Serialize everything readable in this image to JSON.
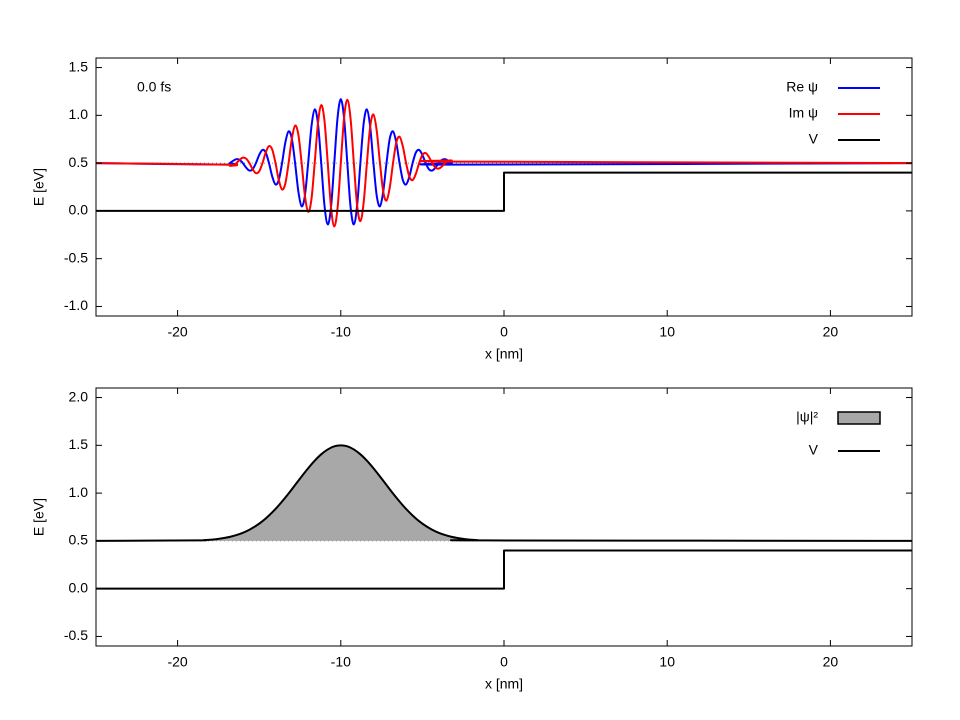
{
  "chart_data": [
    {
      "type": "line",
      "xlabel": "x [nm]",
      "ylabel": "E [eV]",
      "annotation": "0.0 fs",
      "xlim": [
        -25,
        25
      ],
      "xticks": [
        -20,
        -10,
        0,
        10,
        20
      ],
      "ylim": [
        -1.1,
        1.6
      ],
      "yticks": [
        {
          "value": -1,
          "label": "-1.0"
        },
        -0.5,
        {
          "value": 0,
          "label": "0.0"
        },
        0.5,
        {
          "value": 1,
          "label": "1.0"
        },
        1.5
      ],
      "energy": 0.5,
      "legend": "top-right",
      "series": [
        {
          "name": "Re ψ",
          "color": "#0000ff",
          "smooth": true,
          "x": [
            -25,
            -17,
            -16.8,
            -16.6,
            -16.4,
            -16.2,
            -16,
            -15.8,
            -15.6,
            -15.4,
            -15.2,
            -15,
            -14.8,
            -14.6,
            -14.4,
            -14.2,
            -14,
            -13.8,
            -13.6,
            -13.4,
            -13.2,
            -13,
            -12.8,
            -12.6,
            -12.4,
            -12.2,
            -12,
            -11.8,
            -11.6,
            -11.4,
            -11.2,
            -11,
            -10.8,
            -10.6,
            -10.4,
            -10.2,
            -10,
            -9.8,
            -9.6,
            -9.4,
            -9.2,
            -9,
            -8.8,
            -8.6,
            -8.4,
            -8.2,
            -8,
            -7.8,
            -7.6,
            -7.4,
            -7.2,
            -7,
            -6.8,
            -6.6,
            -6.4,
            -6.2,
            -6,
            -5.8,
            -5.6,
            -5.4,
            -5.2,
            -5,
            -4.8,
            -4.6,
            -4.4,
            -4.2,
            -4,
            -3.8,
            -3.6,
            -3.4,
            -3.2,
            -3,
            25
          ],
          "values": [
            0.5,
            0.484,
            0.5,
            0.524,
            0.541,
            0.534,
            0.5,
            0.453,
            0.422,
            0.436,
            0.5,
            0.586,
            0.638,
            0.611,
            0.5,
            0.359,
            0.276,
            0.324,
            0.5,
            0.715,
            0.832,
            0.756,
            0.5,
            0.202,
            0.048,
            0.16,
            0.5,
            0.88,
            1.062,
            0.914,
            0.5,
            0.057,
            -0.141,
            0.038,
            0.5,
            0.972,
            1.17,
            0.972,
            0.5,
            0.038,
            -0.141,
            0.057,
            0.5,
            0.914,
            1.062,
            0.88,
            0.5,
            0.16,
            0.048,
            0.202,
            0.5,
            0.756,
            0.832,
            0.715,
            0.5,
            0.324,
            0.276,
            0.359,
            0.5,
            0.611,
            0.638,
            0.586,
            0.5,
            0.436,
            0.422,
            0.453,
            0.5,
            0.534,
            0.541,
            0.524,
            0.5,
            0.484,
            0.5
          ]
        },
        {
          "name": "Im ψ",
          "color": "#ff0000",
          "smooth": true,
          "x": [
            -25,
            -17,
            -16.8,
            -16.6,
            -16.4,
            -16.2,
            -16,
            -15.8,
            -15.6,
            -15.4,
            -15.2,
            -15,
            -14.8,
            -14.6,
            -14.4,
            -14.2,
            -14,
            -13.8,
            -13.6,
            -13.4,
            -13.2,
            -13,
            -12.8,
            -12.6,
            -12.4,
            -12.2,
            -12,
            -11.8,
            -11.6,
            -11.4,
            -11.2,
            -11,
            -10.8,
            -10.6,
            -10.4,
            -10.2,
            -10,
            -9.8,
            -9.6,
            -9.4,
            -9.2,
            -9,
            -8.8,
            -8.6,
            -8.4,
            -8.2,
            -8,
            -7.8,
            -7.6,
            -7.4,
            -7.2,
            -7,
            -6.8,
            -6.6,
            -6.4,
            -6.2,
            -6,
            -5.8,
            -5.6,
            -5.4,
            -5.2,
            -5,
            -4.8,
            -4.6,
            -4.4,
            -4.2,
            -4,
            -3.8,
            -3.6,
            -3.4,
            -3.2,
            -3,
            25
          ],
          "values": [
            0.5,
            0.484,
            0.472,
            0.476,
            0.5,
            0.534,
            0.557,
            0.547,
            0.5,
            0.436,
            0.395,
            0.414,
            0.5,
            0.611,
            0.678,
            0.641,
            0.5,
            0.324,
            0.224,
            0.285,
            0.5,
            0.756,
            0.892,
            0.798,
            0.5,
            0.16,
            -0.009,
            0.12,
            0.5,
            0.914,
            1.107,
            0.943,
            0.5,
            0.038,
            -0.163,
            0.028,
            0.5,
            0.972,
            1.163,
            0.962,
            0.5,
            0.057,
            -0.107,
            0.086,
            0.5,
            0.88,
            1.009,
            0.84,
            0.5,
            0.202,
            0.108,
            0.244,
            0.5,
            0.715,
            0.776,
            0.676,
            0.5,
            0.359,
            0.322,
            0.389,
            0.5,
            0.586,
            0.605,
            0.564,
            0.5,
            0.453,
            0.443,
            0.466,
            0.5,
            0.524,
            0.528,
            0.516,
            0.5
          ]
        },
        {
          "name": "V",
          "color": "#000000",
          "x": [
            -25,
            0,
            0,
            25
          ],
          "values": [
            0,
            0,
            0.4,
            0.4
          ]
        }
      ]
    },
    {
      "type": "line",
      "xlabel": "x [nm]",
      "ylabel": "E [eV]",
      "xlim": [
        -25,
        25
      ],
      "xticks": [
        -20,
        -10,
        0,
        10,
        20
      ],
      "ylim": [
        -0.6,
        2.1
      ],
      "yticks": [
        -0.5,
        {
          "value": 0,
          "label": "0.0"
        },
        0.5,
        {
          "value": 1,
          "label": "1.0"
        },
        1.5,
        {
          "value": 2,
          "label": "2.0"
        }
      ],
      "energy": 0.5,
      "legend": "top-right",
      "series": [
        {
          "name": "|ψ|²",
          "color": "#000000",
          "fill_color": "#a8a8a8",
          "smooth": true,
          "x": [
            -25,
            -18.8,
            -18.4,
            -18,
            -17.6,
            -17.2,
            -16.8,
            -16.4,
            -16,
            -15.6,
            -15.2,
            -14.8,
            -14.4,
            -14,
            -13.6,
            -13.2,
            -12.8,
            -12.4,
            -12,
            -11.6,
            -11.2,
            -10.8,
            -10.4,
            -10,
            -9.6,
            -9.2,
            -8.8,
            -8.4,
            -8,
            -7.6,
            -7.2,
            -6.8,
            -6.4,
            -6,
            -5.6,
            -5.2,
            -4.8,
            -4.4,
            -4,
            -3.6,
            -3.2,
            -2.8,
            -2.4,
            -2,
            -1.6,
            -1.2,
            25
          ],
          "values": [
            0.5,
            0.505,
            0.508,
            0.512,
            0.519,
            0.529,
            0.542,
            0.561,
            0.585,
            0.617,
            0.657,
            0.706,
            0.766,
            0.834,
            0.912,
            0.996,
            1.085,
            1.174,
            1.26,
            1.339,
            1.406,
            1.457,
            1.49,
            1.5,
            1.49,
            1.457,
            1.406,
            1.339,
            1.26,
            1.174,
            1.085,
            0.996,
            0.912,
            0.834,
            0.766,
            0.706,
            0.657,
            0.617,
            0.585,
            0.561,
            0.542,
            0.529,
            0.519,
            0.512,
            0.508,
            0.505,
            0.5
          ]
        },
        {
          "name": "V",
          "color": "#000000",
          "x": [
            -25,
            0,
            0,
            25
          ],
          "values": [
            0,
            0,
            0.4,
            0.4
          ]
        }
      ]
    }
  ]
}
